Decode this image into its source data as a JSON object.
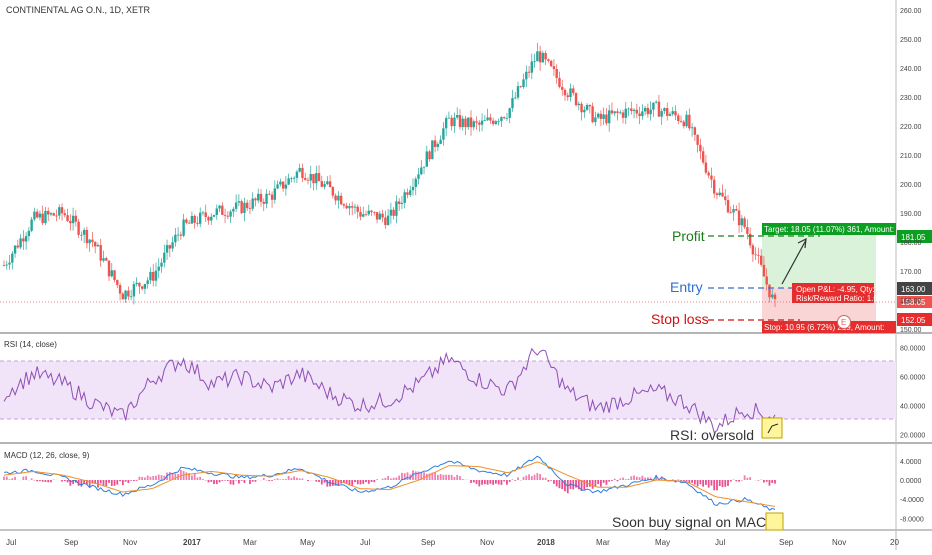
{
  "header": {
    "symbol_title": "CONTINENTAL AG O.N., 1D, XETR"
  },
  "colors": {
    "up": "#26a69a",
    "down": "#ef5350",
    "rsi_line": "#8e4fb5",
    "rsi_band": "#f1e3f8",
    "macd_line": "#2f7fe0",
    "signal_line": "#f0902a",
    "hist_pos": "#f080b0",
    "hist_neg": "#e8508f",
    "profit": "#1a7f1a",
    "entry": "#2f6fd0",
    "stop": "#d01010"
  },
  "price_axis": {
    "ticks": [
      "260.00",
      "250.00",
      "240.00",
      "230.00",
      "220.00",
      "210.00",
      "200.00",
      "190.00",
      "180.00",
      "170.00",
      "160.00",
      "150.00"
    ]
  },
  "rsi_panel": {
    "title": "RSI (14, close)",
    "ticks": [
      "80.0000",
      "60.0000",
      "40.0000",
      "20.0000"
    ],
    "note": "RSI: oversold"
  },
  "macd_panel": {
    "title": "MACD (12, 26, close, 9)",
    "ticks": [
      "4.0000",
      "0.0000",
      "-4.0000",
      "-8.0000"
    ],
    "note": "Soon buy signal on MACD"
  },
  "time_axis": {
    "labels": [
      "Jul",
      "Sep",
      "Nov",
      "2017",
      "Mar",
      "May",
      "Jul",
      "Sep",
      "Nov",
      "2018",
      "Mar",
      "May",
      "Jul",
      "Sep",
      "Nov",
      "20"
    ]
  },
  "trade": {
    "profit_label": "Profit",
    "entry_label": "Entry",
    "stop_label": "Stop loss",
    "target_text": "Target: 18.05 (11.07%) 361, Amount:",
    "open_pnl_text": "Open P&L: -4.95, Qty: 22",
    "rr_text": "Risk/Reward Ratio: 1.65",
    "stop_text": "Stop: 10.95 (6.72%) 219, Amount:",
    "target_price": "181.05",
    "entry_price": "163.00",
    "last_price": "158.05",
    "stop_price": "152.05",
    "earnings_marker": "E"
  },
  "chart_data": [
    {
      "type": "candlestick",
      "title": "CONTINENTAL AG O.N., 1D, XETR",
      "ylim": [
        150,
        262
      ],
      "x": [
        "2016-07",
        "2016-08",
        "2016-09",
        "2016-10",
        "2016-11",
        "2016-12",
        "2017-01",
        "2017-02",
        "2017-03",
        "2017-04",
        "2017-05",
        "2017-06",
        "2017-07",
        "2017-08",
        "2017-09",
        "2017-10",
        "2017-11",
        "2017-12",
        "2018-01",
        "2018-02",
        "2018-03",
        "2018-04",
        "2018-05",
        "2018-06",
        "2018-07",
        "2018-08",
        "2018-09"
      ],
      "close": [
        172,
        188,
        190,
        180,
        162,
        168,
        185,
        190,
        192,
        196,
        205,
        198,
        190,
        188,
        205,
        222,
        220,
        225,
        245,
        232,
        222,
        225,
        226,
        222,
        198,
        185,
        158
      ],
      "annotations": {
        "profit": 181.05,
        "entry": 163.0,
        "stop": 152.05,
        "last": 158.05
      }
    },
    {
      "type": "line",
      "title": "RSI (14, close)",
      "ylim": [
        15,
        90
      ],
      "band": [
        30,
        70
      ],
      "x": [
        "2016-07",
        "2016-08",
        "2016-09",
        "2016-10",
        "2016-11",
        "2016-12",
        "2017-01",
        "2017-02",
        "2017-03",
        "2017-04",
        "2017-05",
        "2017-06",
        "2017-07",
        "2017-08",
        "2017-09",
        "2017-10",
        "2017-11",
        "2017-12",
        "2018-01",
        "2018-02",
        "2018-03",
        "2018-04",
        "2018-05",
        "2018-06",
        "2018-07",
        "2018-08",
        "2018-09"
      ],
      "series": [
        {
          "values": [
            48,
            62,
            55,
            42,
            32,
            58,
            72,
            55,
            60,
            52,
            62,
            48,
            40,
            44,
            55,
            72,
            58,
            50,
            80,
            50,
            38,
            45,
            50,
            42,
            25,
            38,
            32
          ]
        }
      ]
    },
    {
      "type": "line",
      "title": "MACD (12, 26, close, 9)",
      "ylim": [
        -10,
        6
      ],
      "x": [
        "2016-07",
        "2016-08",
        "2016-09",
        "2016-10",
        "2016-11",
        "2016-12",
        "2017-01",
        "2017-02",
        "2017-03",
        "2017-04",
        "2017-05",
        "2017-06",
        "2017-07",
        "2017-08",
        "2017-09",
        "2017-10",
        "2017-11",
        "2017-12",
        "2018-01",
        "2018-02",
        "2018-03",
        "2018-04",
        "2018-05",
        "2018-06",
        "2018-07",
        "2018-08",
        "2018-09"
      ],
      "series": [
        {
          "values": [
            1.5,
            2.0,
            0.5,
            -1.5,
            -3.0,
            -1.0,
            2.5,
            1.5,
            0.5,
            1.0,
            2.5,
            -0.5,
            -2.5,
            -1.5,
            1.5,
            4.0,
            2.0,
            1.0,
            5.0,
            -1.0,
            -2.5,
            -1.0,
            0.5,
            -0.5,
            -5.0,
            -4.0,
            -6.5
          ]
        },
        {
          "values": [
            1.0,
            1.8,
            1.0,
            -0.5,
            -2.5,
            -1.8,
            1.0,
            1.8,
            1.0,
            0.8,
            2.0,
            0.5,
            -1.8,
            -2.0,
            0.0,
            3.0,
            2.8,
            1.5,
            3.8,
            1.0,
            -1.5,
            -1.5,
            0.0,
            -0.3,
            -3.5,
            -4.5,
            -5.5
          ]
        }
      ]
    }
  ]
}
